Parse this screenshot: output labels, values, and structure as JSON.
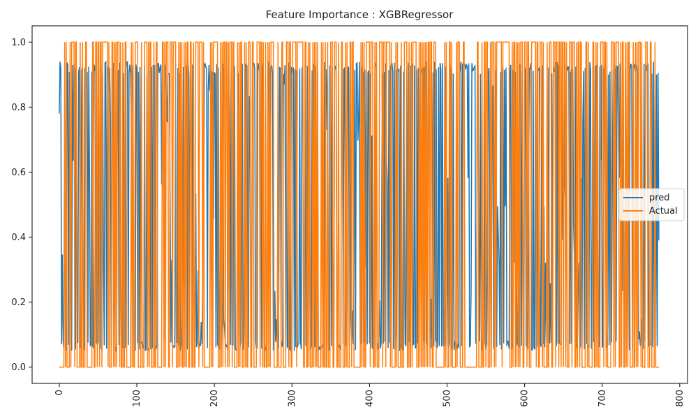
{
  "chart_data": {
    "type": "line",
    "title": "Feature Importance : XGBRegressor",
    "xlabel": "",
    "ylabel": "",
    "xlim": [
      -35,
      810
    ],
    "ylim": [
      -0.05,
      1.05
    ],
    "x_ticks": [
      0,
      100,
      200,
      300,
      400,
      500,
      600,
      700,
      800
    ],
    "y_ticks": [
      0.0,
      0.2,
      0.4,
      0.6,
      0.8,
      1.0
    ],
    "x_tick_labels": [
      "0",
      "100",
      "200",
      "300",
      "400",
      "500",
      "600",
      "700",
      "800"
    ],
    "y_tick_labels": [
      "0.0",
      "0.2",
      "0.4",
      "0.6",
      "0.8",
      "1.0"
    ],
    "grid": false,
    "legend_position": "center-right",
    "n_points": 774,
    "series": [
      {
        "name": "pred",
        "color": "#1f77b4",
        "sample_x": [
          0,
          3,
          6,
          12,
          24,
          33,
          35,
          42,
          45,
          48,
          55,
          62,
          68,
          73,
          76,
          85,
          95,
          104,
          113,
          125,
          137,
          140,
          149,
          160,
          171,
          182,
          193,
          204,
          210,
          215,
          222,
          225,
          238,
          244,
          249,
          258,
          266,
          271,
          282,
          288,
          300,
          306,
          310,
          312,
          318,
          322,
          330,
          334,
          342,
          355,
          366,
          377,
          388,
          393,
          400,
          412,
          418,
          430,
          440,
          443,
          447,
          460,
          470,
          478,
          485,
          495,
          505,
          515,
          525,
          530,
          535,
          545,
          552,
          560,
          570,
          580,
          590,
          600,
          610,
          620,
          630,
          635,
          645,
          655,
          658,
          667,
          677,
          686,
          694,
          700,
          703,
          706,
          718,
          728,
          734,
          740,
          746,
          750,
          758,
          764,
          770,
          774
        ],
        "sample_y": [
          0.78,
          0.07,
          0.9,
          0.35,
          0.92,
          0.06,
          0.16,
          0.93,
          0.2,
          0.68,
          0.06,
          0.93,
          0.68,
          0.06,
          0.62,
          0.06,
          0.93,
          0.53,
          0.05,
          0.06,
          0.92,
          0.67,
          0.06,
          0.19,
          0.93,
          0.06,
          0.93,
          0.06,
          0.2,
          0.07,
          0.57,
          0.93,
          0.06,
          0.93,
          0.45,
          0.1,
          0.93,
          0.54,
          0.06,
          0.93,
          0.57,
          0.11,
          0.06,
          0.32,
          0.06,
          0.93,
          0.06,
          0.59,
          0.93,
          0.06,
          0.62,
          0.1,
          0.92,
          0.06,
          0.93,
          0.06,
          0.93,
          0.06,
          0.25,
          0.92,
          0.11,
          0.93,
          0.06,
          0.09,
          0.93,
          0.06,
          0.93,
          0.06,
          0.93,
          0.06,
          0.93,
          0.04,
          0.42,
          0.93,
          0.06,
          0.93,
          0.06,
          0.93,
          0.06,
          0.93,
          0.06,
          0.39,
          0.06,
          0.89,
          0.93,
          0.06,
          0.93,
          0.11,
          0.93,
          0.49,
          0.93,
          0.06,
          0.93,
          0.06,
          0.91,
          0.15,
          0.06,
          0.16,
          0.08,
          0.06,
          0.05,
          0.39
        ]
      },
      {
        "name": "Actual",
        "color": "#ff7f0e",
        "values_binary": [
          0,
          1
        ],
        "sample_x": [
          0,
          2,
          4,
          7,
          10,
          15,
          20,
          28,
          36,
          44,
          52,
          60,
          68,
          76,
          84,
          92,
          100,
          108,
          116,
          124,
          132,
          140,
          148,
          156,
          164,
          172,
          180,
          188,
          196,
          204,
          212,
          220,
          228,
          236,
          244,
          252,
          260,
          268,
          276,
          284,
          292,
          300,
          308,
          316,
          324,
          332,
          340,
          348,
          356,
          364,
          372,
          380,
          388,
          396,
          404,
          412,
          420,
          428,
          436,
          444,
          452,
          460,
          468,
          476,
          484,
          492,
          500,
          508,
          516,
          524,
          532,
          540,
          548,
          556,
          564,
          572,
          580,
          588,
          596,
          604,
          612,
          620,
          628,
          636,
          644,
          652,
          660,
          668,
          676,
          684,
          692,
          700,
          708,
          716,
          724,
          732,
          740,
          748,
          756,
          764,
          772
        ],
        "sample_y": [
          0,
          1,
          0,
          1,
          0,
          1,
          0,
          1,
          0,
          1,
          0,
          1,
          0,
          1,
          0,
          1,
          0,
          1,
          0,
          1,
          0,
          1,
          0,
          1,
          0,
          1,
          0,
          1,
          0,
          1,
          0,
          1,
          0,
          1,
          0,
          1,
          0,
          1,
          0,
          1,
          0,
          1,
          0,
          1,
          0,
          1,
          0,
          1,
          0,
          1,
          0,
          1,
          0,
          1,
          0,
          1,
          0,
          1,
          0,
          1,
          0,
          1,
          0,
          1,
          0,
          1,
          0,
          1,
          0,
          1,
          0,
          1,
          0,
          1,
          0,
          1,
          0,
          1,
          0,
          1,
          0,
          1,
          0,
          1,
          0,
          1,
          0,
          1,
          0,
          1,
          0,
          1,
          0,
          1,
          0,
          1,
          0,
          1,
          0,
          1,
          0
        ]
      }
    ]
  }
}
